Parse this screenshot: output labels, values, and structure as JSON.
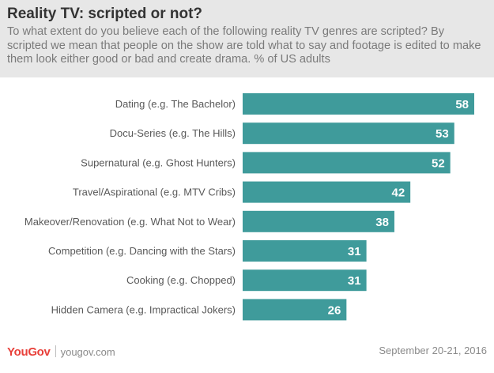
{
  "header": {
    "title": "Reality TV: scripted or not?",
    "subtitle": "To what extent do you believe each of the following reality TV genres are scripted? By scripted we mean that people on the show are told what to say and footage is edited to make them look either good or bad and create drama. % of US adults"
  },
  "chart_data": {
    "type": "bar",
    "orientation": "horizontal",
    "categories": [
      "Dating (e.g. The Bachelor)",
      "Docu-Series (e.g. The Hills)",
      "Supernatural (e.g. Ghost Hunters)",
      "Travel/Aspirational (e.g. MTV Cribs)",
      "Makeover/Renovation (e.g. What Not to Wear)",
      "Competition (e.g. Dancing with the Stars)",
      "Cooking (e.g. Chopped)",
      "Hidden Camera (e.g. Impractical Jokers)"
    ],
    "values": [
      58,
      53,
      52,
      42,
      38,
      31,
      31,
      26
    ],
    "bar_color": "#3f9b9b",
    "data_labels": true,
    "grid": false
  },
  "footer": {
    "logo": "YouGov",
    "site": "yougov.com",
    "date": "September 20-21, 2016"
  },
  "colors": {
    "header_bg": "#e7e7e7",
    "brand": "#e8403a",
    "bar": "#3f9b9b"
  }
}
